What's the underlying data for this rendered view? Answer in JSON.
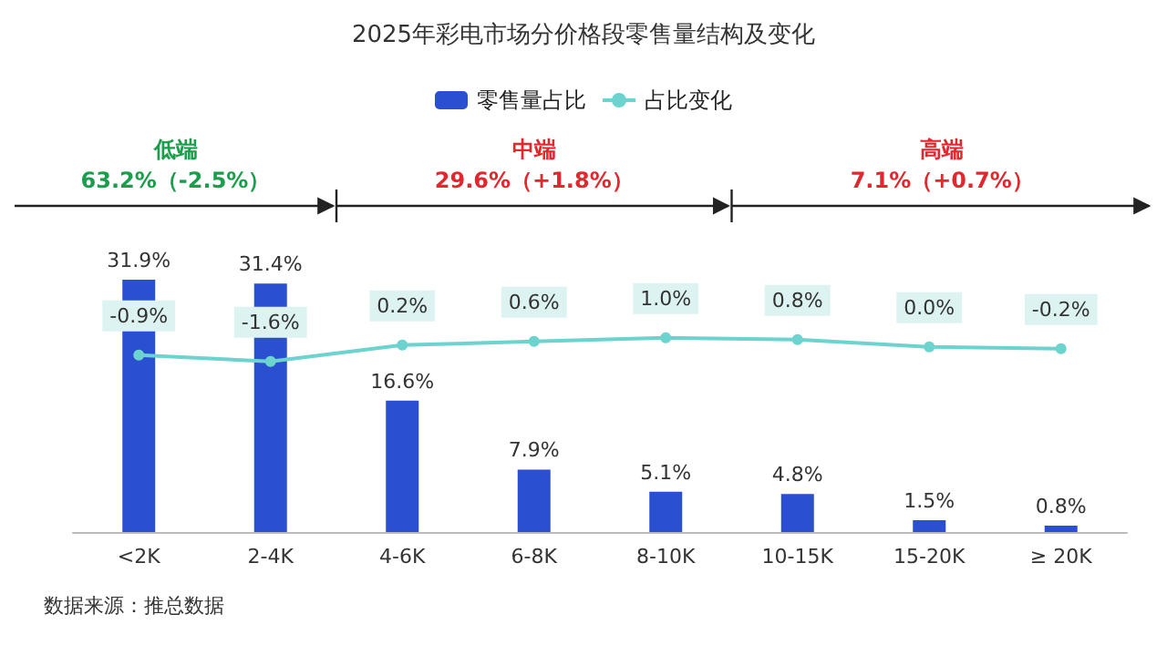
{
  "chart_data": {
    "type": "bar",
    "title": "2025年彩电市场分价格段零售量结构及变化",
    "categories": [
      "<2K",
      "2-4K",
      "4-6K",
      "6-8K",
      "8-10K",
      "10-15K",
      "15-20K",
      "≥ 20K"
    ],
    "series": [
      {
        "name": "零售量占比",
        "color": "#2a4fd0",
        "values": [
          31.9,
          31.4,
          16.6,
          7.9,
          5.1,
          4.8,
          1.5,
          0.8
        ],
        "value_labels": [
          "31.9%",
          "31.4%",
          "16.6%",
          "7.9%",
          "5.1%",
          "4.8%",
          "1.5%",
          "0.8%"
        ]
      },
      {
        "name": "占比变化",
        "type": "line",
        "axis": "y2",
        "color": "#6cd3cf",
        "values": [
          -0.9,
          -1.6,
          0.2,
          0.6,
          1.0,
          0.8,
          0.0,
          -0.2
        ],
        "value_labels": [
          "-0.9%",
          "-1.6%",
          "0.2%",
          "0.6%",
          "1.0%",
          "0.8%",
          "0.0%",
          "-0.2%"
        ]
      }
    ],
    "legend": "top",
    "marker": "circle",
    "tick_labels": "x",
    "annotations": [
      "低端",
      "63.2%（-2.5%）",
      "中端",
      "29.6%（+1.8%）",
      "高端",
      "7.1%（+0.7%）",
      "数据来源：推总数据"
    ]
  }
}
